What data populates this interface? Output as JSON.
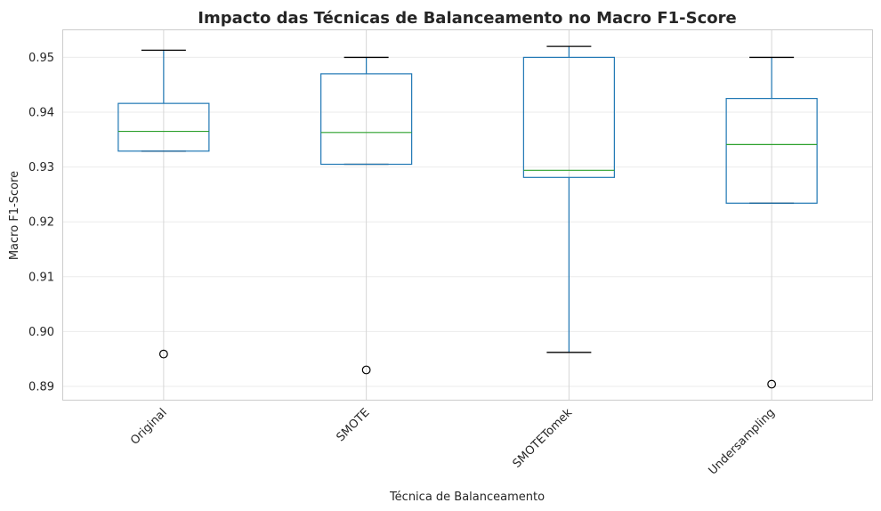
{
  "chart_data": {
    "type": "box",
    "title": "Impacto das Técnicas de Balanceamento no Macro F1-Score",
    "xlabel": "Técnica de Balanceamento",
    "ylabel": "Macro F1-Score",
    "categories": [
      "Original",
      "SMOTE",
      "SMOTETomek",
      "Undersampling"
    ],
    "ylim": [
      0.8874,
      0.9551
    ],
    "yticks": [
      0.89,
      0.9,
      0.91,
      0.92,
      0.93,
      0.94,
      0.95
    ],
    "ytick_labels": [
      "0.89",
      "0.90",
      "0.91",
      "0.92",
      "0.93",
      "0.94",
      "0.95"
    ],
    "grid": true,
    "boxes": [
      {
        "category": "Original",
        "whisker_low": 0.9329,
        "q1": 0.9329,
        "median": 0.9365,
        "q3": 0.9416,
        "whisker_high": 0.9513,
        "outliers": [
          0.8959
        ]
      },
      {
        "category": "SMOTE",
        "whisker_low": 0.9305,
        "q1": 0.9305,
        "median": 0.9363,
        "q3": 0.947,
        "whisker_high": 0.95,
        "outliers": [
          0.893
        ]
      },
      {
        "category": "SMOTETomek",
        "whisker_low": 0.8962,
        "q1": 0.9281,
        "median": 0.9294,
        "q3": 0.95,
        "whisker_high": 0.952,
        "outliers": []
      },
      {
        "category": "Undersampling",
        "whisker_low": 0.9234,
        "q1": 0.9234,
        "median": 0.9341,
        "q3": 0.9425,
        "whisker_high": 0.95,
        "outliers": [
          0.8904
        ]
      }
    ],
    "colors": {
      "box": "#1f77b4",
      "median": "#2ca02c",
      "whisker": "#1f77b4",
      "cap": "#000000",
      "outlier": "#000000",
      "grid": "#ebebeb",
      "spine": "#cccccc"
    }
  }
}
